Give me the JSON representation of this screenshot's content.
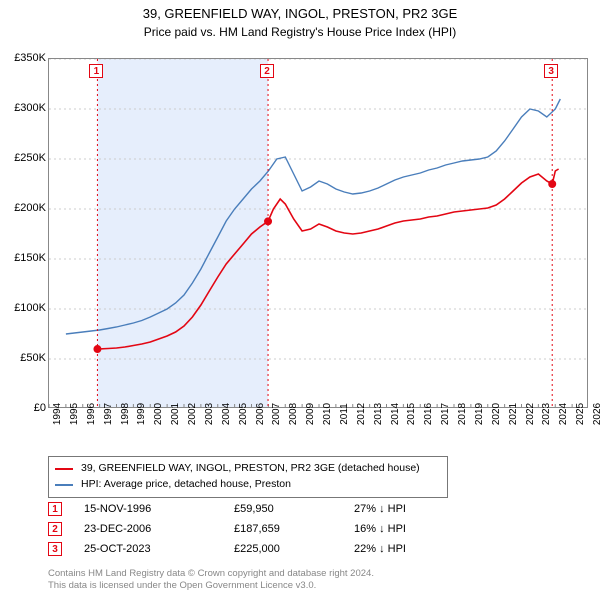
{
  "title": "39, GREENFIELD WAY, INGOL, PRESTON, PR2 3GE",
  "subtitle": "Price paid vs. HM Land Registry's House Price Index (HPI)",
  "chart": {
    "type": "line",
    "background_color": "#ffffff",
    "plot_border_color": "#888888",
    "shaded_band_color": "#e6eefc",
    "shaded_band_from": 1996.87,
    "shaded_band_to": 2006.98,
    "x": {
      "min": 1994,
      "max": 2026,
      "ticks": [
        1994,
        1995,
        1996,
        1997,
        1998,
        1999,
        2000,
        2001,
        2002,
        2003,
        2004,
        2005,
        2006,
        2007,
        2008,
        2009,
        2010,
        2011,
        2012,
        2013,
        2014,
        2015,
        2016,
        2017,
        2018,
        2019,
        2020,
        2021,
        2022,
        2023,
        2024,
        2025,
        2026
      ],
      "tick_fontsize": 10,
      "rotation": -90
    },
    "y": {
      "min": 0,
      "max": 350000,
      "ticks": [
        0,
        50000,
        100000,
        150000,
        200000,
        250000,
        300000,
        350000
      ],
      "tick_labels": [
        "£0",
        "£50K",
        "£100K",
        "£150K",
        "£200K",
        "£250K",
        "£300K",
        "£350K"
      ],
      "tick_fontsize": 11,
      "grid": true,
      "grid_color": "#cccccc",
      "grid_dash": "2,3"
    },
    "series": [
      {
        "name": "price_paid",
        "label": "39, GREENFIELD WAY, INGOL, PRESTON, PR2 3GE (detached house)",
        "color": "#e30613",
        "width": 1.6,
        "points": [
          [
            1996.87,
            59950
          ],
          [
            1997.5,
            60500
          ],
          [
            1998.0,
            61000
          ],
          [
            1998.5,
            62000
          ],
          [
            1999.0,
            63500
          ],
          [
            1999.5,
            65000
          ],
          [
            2000.0,
            67000
          ],
          [
            2000.5,
            70000
          ],
          [
            2001.0,
            73000
          ],
          [
            2001.5,
            77000
          ],
          [
            2002.0,
            83000
          ],
          [
            2002.5,
            92000
          ],
          [
            2003.0,
            104000
          ],
          [
            2003.5,
            118000
          ],
          [
            2004.0,
            132000
          ],
          [
            2004.5,
            145000
          ],
          [
            2005.0,
            155000
          ],
          [
            2005.5,
            165000
          ],
          [
            2006.0,
            175000
          ],
          [
            2006.5,
            182000
          ],
          [
            2006.98,
            187659
          ],
          [
            2007.3,
            200000
          ],
          [
            2007.7,
            210000
          ],
          [
            2008.0,
            205000
          ],
          [
            2008.5,
            190000
          ],
          [
            2009.0,
            178000
          ],
          [
            2009.5,
            180000
          ],
          [
            2010.0,
            185000
          ],
          [
            2010.5,
            182000
          ],
          [
            2011.0,
            178000
          ],
          [
            2011.5,
            176000
          ],
          [
            2012.0,
            175000
          ],
          [
            2012.5,
            176000
          ],
          [
            2013.0,
            178000
          ],
          [
            2013.5,
            180000
          ],
          [
            2014.0,
            183000
          ],
          [
            2014.5,
            186000
          ],
          [
            2015.0,
            188000
          ],
          [
            2015.5,
            189000
          ],
          [
            2016.0,
            190000
          ],
          [
            2016.5,
            192000
          ],
          [
            2017.0,
            193000
          ],
          [
            2017.5,
            195000
          ],
          [
            2018.0,
            197000
          ],
          [
            2018.5,
            198000
          ],
          [
            2019.0,
            199000
          ],
          [
            2019.5,
            200000
          ],
          [
            2020.0,
            201000
          ],
          [
            2020.5,
            204000
          ],
          [
            2021.0,
            210000
          ],
          [
            2021.5,
            218000
          ],
          [
            2022.0,
            226000
          ],
          [
            2022.5,
            232000
          ],
          [
            2023.0,
            235000
          ],
          [
            2023.5,
            228000
          ],
          [
            2023.82,
            225000
          ],
          [
            2024.0,
            238000
          ],
          [
            2024.2,
            240000
          ]
        ]
      },
      {
        "name": "hpi",
        "label": "HPI: Average price, detached house, Preston",
        "color": "#4a7ebb",
        "width": 1.4,
        "points": [
          [
            1995.0,
            75000
          ],
          [
            1995.5,
            76000
          ],
          [
            1996.0,
            77000
          ],
          [
            1996.5,
            78000
          ],
          [
            1997.0,
            79000
          ],
          [
            1997.5,
            80500
          ],
          [
            1998.0,
            82000
          ],
          [
            1998.5,
            84000
          ],
          [
            1999.0,
            86000
          ],
          [
            1999.5,
            88500
          ],
          [
            2000.0,
            92000
          ],
          [
            2000.5,
            96000
          ],
          [
            2001.0,
            100000
          ],
          [
            2001.5,
            106000
          ],
          [
            2002.0,
            114000
          ],
          [
            2002.5,
            126000
          ],
          [
            2003.0,
            140000
          ],
          [
            2003.5,
            156000
          ],
          [
            2004.0,
            172000
          ],
          [
            2004.5,
            188000
          ],
          [
            2005.0,
            200000
          ],
          [
            2005.5,
            210000
          ],
          [
            2006.0,
            220000
          ],
          [
            2006.5,
            228000
          ],
          [
            2007.0,
            238000
          ],
          [
            2007.5,
            250000
          ],
          [
            2008.0,
            252000
          ],
          [
            2008.5,
            235000
          ],
          [
            2009.0,
            218000
          ],
          [
            2009.5,
            222000
          ],
          [
            2010.0,
            228000
          ],
          [
            2010.5,
            225000
          ],
          [
            2011.0,
            220000
          ],
          [
            2011.5,
            217000
          ],
          [
            2012.0,
            215000
          ],
          [
            2012.5,
            216000
          ],
          [
            2013.0,
            218000
          ],
          [
            2013.5,
            221000
          ],
          [
            2014.0,
            225000
          ],
          [
            2014.5,
            229000
          ],
          [
            2015.0,
            232000
          ],
          [
            2015.5,
            234000
          ],
          [
            2016.0,
            236000
          ],
          [
            2016.5,
            239000
          ],
          [
            2017.0,
            241000
          ],
          [
            2017.5,
            244000
          ],
          [
            2018.0,
            246000
          ],
          [
            2018.5,
            248000
          ],
          [
            2019.0,
            249000
          ],
          [
            2019.5,
            250000
          ],
          [
            2020.0,
            252000
          ],
          [
            2020.5,
            258000
          ],
          [
            2021.0,
            268000
          ],
          [
            2021.5,
            280000
          ],
          [
            2022.0,
            292000
          ],
          [
            2022.5,
            300000
          ],
          [
            2023.0,
            298000
          ],
          [
            2023.5,
            292000
          ],
          [
            2024.0,
            300000
          ],
          [
            2024.3,
            310000
          ]
        ]
      }
    ],
    "sale_markers": [
      {
        "n": "1",
        "x": 1996.87,
        "y": 59950,
        "y_top": 6
      },
      {
        "n": "2",
        "x": 2006.98,
        "y": 187659,
        "y_top": 6
      },
      {
        "n": "3",
        "x": 2023.82,
        "y": 225000,
        "y_top": 6
      }
    ],
    "marker_dot_color": "#e30613",
    "marker_dot_radius": 4,
    "marker_line_color": "#e30613",
    "marker_line_dash": "2,3"
  },
  "legend": {
    "entries": [
      {
        "color": "#e30613",
        "label": "39, GREENFIELD WAY, INGOL, PRESTON, PR2 3GE (detached house)"
      },
      {
        "color": "#4a7ebb",
        "label": "HPI: Average price, detached house, Preston"
      }
    ]
  },
  "sales": [
    {
      "n": "1",
      "date": "15-NOV-1996",
      "price": "£59,950",
      "delta": "27% ↓ HPI"
    },
    {
      "n": "2",
      "date": "23-DEC-2006",
      "price": "£187,659",
      "delta": "16% ↓ HPI"
    },
    {
      "n": "3",
      "date": "25-OCT-2023",
      "price": "£225,000",
      "delta": "22% ↓ HPI"
    }
  ],
  "footer": {
    "line1": "Contains HM Land Registry data © Crown copyright and database right 2024.",
    "line2": "This data is licensed under the Open Government Licence v3.0."
  }
}
